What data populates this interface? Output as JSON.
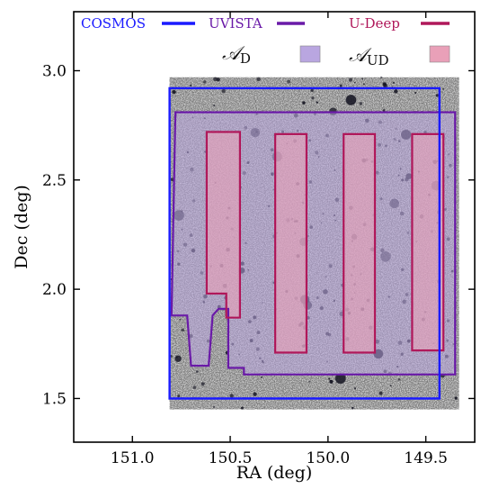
{
  "chart_data": {
    "type": "survey-footprint",
    "xlabel": "RA (deg)",
    "ylabel": "Dec (deg)",
    "xlim": [
      151.3,
      149.25
    ],
    "ylim": [
      1.3,
      3.27
    ],
    "x_ticks": [
      151.0,
      150.5,
      150.0,
      149.5
    ],
    "x_tick_labels": [
      "151.0",
      "150.5",
      "150.0",
      "149.5"
    ],
    "y_ticks": [
      1.5,
      2.0,
      2.5,
      3.0
    ],
    "y_tick_labels": [
      "1.5",
      "2.0",
      "2.5",
      "3.0"
    ],
    "image_extent": {
      "ra": [
        150.81,
        149.33
      ],
      "dec": [
        1.45,
        2.97
      ]
    },
    "regions": [
      {
        "name": "COSMOS",
        "color": "#1a1aff",
        "polygon": [
          [
            150.81,
            1.5
          ],
          [
            149.43,
            1.5
          ],
          [
            149.43,
            2.92
          ],
          [
            150.81,
            2.92
          ]
        ]
      },
      {
        "name": "UVISTA",
        "color": "#6a1aa8",
        "fill": "#b9a6e0",
        "polygon": [
          [
            150.78,
            2.81
          ],
          [
            149.35,
            2.81
          ],
          [
            149.35,
            1.61
          ],
          [
            150.43,
            1.61
          ],
          [
            150.43,
            1.64
          ],
          [
            150.51,
            1.64
          ],
          [
            150.51,
            1.91
          ],
          [
            150.56,
            1.91
          ],
          [
            150.59,
            1.88
          ],
          [
            150.61,
            1.65
          ],
          [
            150.67,
            1.65
          ],
          [
            150.7,
            1.65
          ],
          [
            150.72,
            1.88
          ],
          [
            150.8,
            1.88
          ]
        ]
      },
      {
        "name": "U-Deep",
        "color": "#b0185a",
        "fill": "#e9a0b8",
        "stripes": [
          [
            [
              150.62,
              2.72
            ],
            [
              150.45,
              2.72
            ],
            [
              150.45,
              1.87
            ],
            [
              150.52,
              1.87
            ],
            [
              150.52,
              1.98
            ],
            [
              150.62,
              1.98
            ]
          ],
          [
            [
              150.27,
              2.71
            ],
            [
              150.11,
              2.71
            ],
            [
              150.11,
              1.71
            ],
            [
              150.27,
              1.71
            ]
          ],
          [
            [
              149.92,
              2.71
            ],
            [
              149.76,
              2.71
            ],
            [
              149.76,
              1.71
            ],
            [
              149.92,
              1.71
            ]
          ],
          [
            [
              149.57,
              2.71
            ],
            [
              149.41,
              2.71
            ],
            [
              149.41,
              1.72
            ],
            [
              149.57,
              1.72
            ]
          ]
        ]
      }
    ],
    "legend": {
      "placement": "top",
      "entries": [
        {
          "label": "COSMOS",
          "color": "#1a1aff"
        },
        {
          "label": "UVISTA",
          "color": "#6a1aa8"
        },
        {
          "label": "U-Deep",
          "color": "#b0185a"
        }
      ],
      "areas": [
        {
          "label": "𝒜",
          "subscript": "D",
          "swatch": "#b9a6e0"
        },
        {
          "label": "𝒜",
          "subscript": "UD",
          "swatch": "#e9a0b8"
        }
      ]
    }
  }
}
